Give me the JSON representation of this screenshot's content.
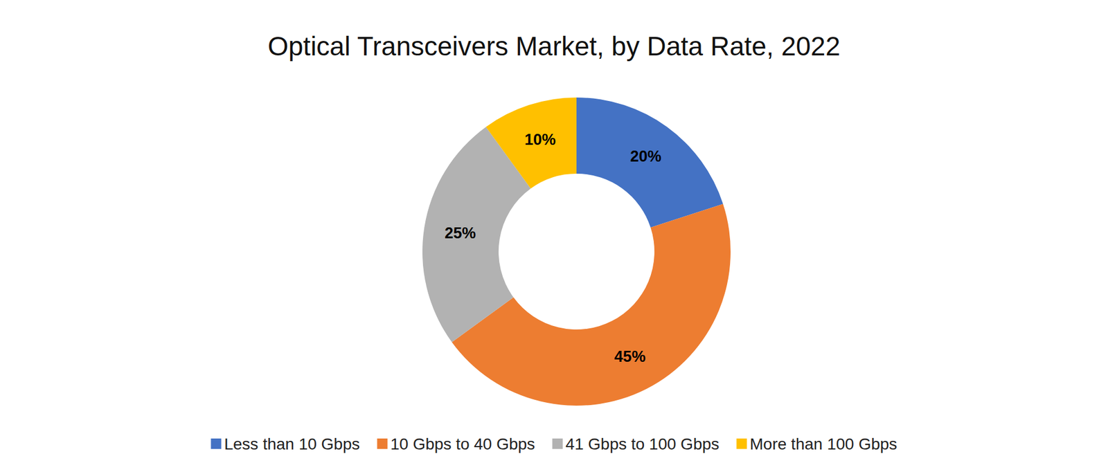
{
  "chart_data": {
    "type": "pie",
    "title": "Optical Transceivers Market, by Data Rate, 2022",
    "categories": [
      "Less than 10 Gbps",
      "10 Gbps to 40 Gbps",
      "41 Gbps to 100 Gbps",
      "More than 100 Gbps"
    ],
    "values": [
      20,
      45,
      25,
      10
    ],
    "value_labels": [
      "20%",
      "45%",
      "25%",
      "10%"
    ],
    "colors": [
      "#4472c4",
      "#ed7d31",
      "#b2b2b2",
      "#ffc000"
    ],
    "data_labels": true,
    "legend": "bottom"
  }
}
